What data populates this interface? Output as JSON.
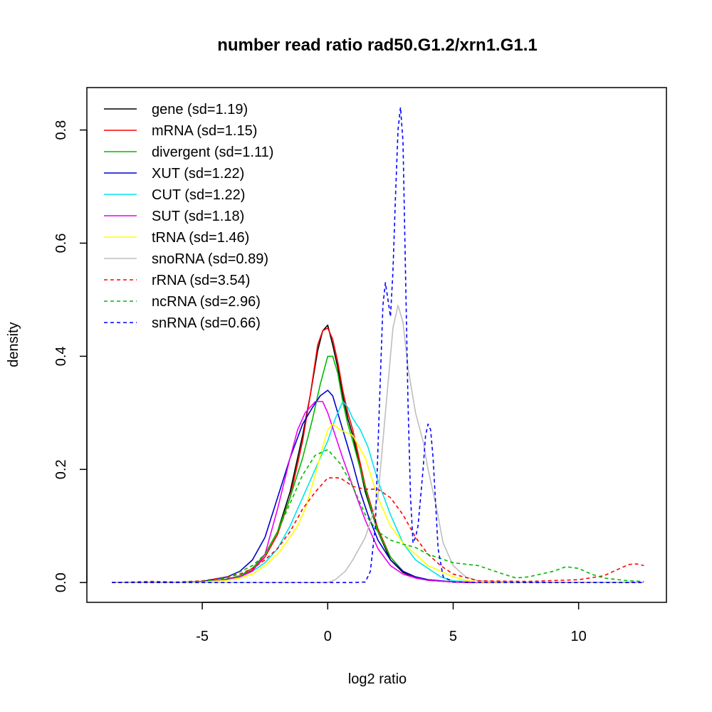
{
  "chart_data": {
    "type": "line",
    "title": "number read ratio rad50.G1.2/xrn1.G1.1",
    "xlabel": "log2 ratio",
    "ylabel": "density",
    "xlim": [
      -9.6,
      13.5
    ],
    "ylim": [
      -0.035,
      0.875
    ],
    "xticks": [
      -5,
      0,
      5,
      10
    ],
    "xtick_labels": [
      "-5",
      "0",
      "5",
      "10"
    ],
    "yticks": [
      0.0,
      0.2,
      0.4,
      0.6,
      0.8
    ],
    "ytick_labels": [
      "0.0",
      "0.2",
      "0.4",
      "0.6",
      "0.8"
    ],
    "legend_position": "top-left",
    "series": [
      {
        "name": "gene",
        "label": "gene (sd=1.19)",
        "color": "#000000",
        "dashed": false,
        "x": [
          -8.6,
          -6,
          -5,
          -4,
          -3.5,
          -3,
          -2.5,
          -2,
          -1.5,
          -1,
          -0.7,
          -0.4,
          -0.2,
          0,
          0.2,
          0.4,
          0.6,
          0.8,
          1,
          1.2,
          1.5,
          2,
          2.5,
          3,
          3.5,
          4,
          5,
          6,
          8,
          10,
          12.6
        ],
        "y": [
          0,
          0,
          0.001,
          0.006,
          0.012,
          0.025,
          0.05,
          0.09,
          0.16,
          0.26,
          0.33,
          0.41,
          0.445,
          0.455,
          0.42,
          0.38,
          0.33,
          0.29,
          0.26,
          0.22,
          0.16,
          0.09,
          0.04,
          0.018,
          0.008,
          0.004,
          0.001,
          0,
          0,
          0,
          0
        ]
      },
      {
        "name": "mRNA",
        "label": "mRNA (sd=1.15)",
        "color": "#ff0000",
        "dashed": false,
        "x": [
          -8.6,
          -6,
          -5,
          -4,
          -3.5,
          -3,
          -2.5,
          -2,
          -1.5,
          -1,
          -0.7,
          -0.4,
          -0.2,
          0,
          0.2,
          0.4,
          0.6,
          0.8,
          1,
          1.2,
          1.5,
          2,
          2.5,
          3,
          3.5,
          4,
          5,
          6,
          8,
          10,
          12.6
        ],
        "y": [
          0,
          0,
          0.001,
          0.005,
          0.01,
          0.022,
          0.045,
          0.085,
          0.15,
          0.25,
          0.33,
          0.42,
          0.445,
          0.45,
          0.43,
          0.39,
          0.34,
          0.3,
          0.27,
          0.23,
          0.17,
          0.095,
          0.045,
          0.02,
          0.009,
          0.004,
          0.001,
          0,
          0,
          0,
          0
        ]
      },
      {
        "name": "divergent",
        "label": "divergent (sd=1.11)",
        "color": "#00bb00",
        "dashed": false,
        "x": [
          -8.6,
          -6,
          -5,
          -4,
          -3.5,
          -3,
          -2.5,
          -2,
          -1.5,
          -1,
          -0.6,
          -0.3,
          0,
          0.2,
          0.4,
          0.6,
          0.8,
          1,
          1.3,
          1.6,
          2,
          2.5,
          3,
          3.5,
          4,
          5,
          6,
          8,
          10,
          12.6
        ],
        "y": [
          0,
          0,
          0.001,
          0.005,
          0.012,
          0.025,
          0.05,
          0.09,
          0.15,
          0.22,
          0.29,
          0.35,
          0.4,
          0.4,
          0.37,
          0.32,
          0.28,
          0.25,
          0.2,
          0.15,
          0.09,
          0.045,
          0.02,
          0.01,
          0.005,
          0.001,
          0,
          0,
          0,
          0
        ]
      },
      {
        "name": "XUT",
        "label": "XUT (sd=1.22)",
        "color": "#0000cc",
        "dashed": false,
        "x": [
          -8.6,
          -6,
          -5,
          -4,
          -3.5,
          -3,
          -2.5,
          -2,
          -1.5,
          -1,
          -0.6,
          -0.3,
          0,
          0.2,
          0.4,
          0.6,
          0.8,
          1,
          1.3,
          1.6,
          2,
          2.5,
          3,
          3.5,
          4,
          5,
          6,
          8,
          10,
          12.6
        ],
        "y": [
          0,
          0,
          0.002,
          0.01,
          0.02,
          0.04,
          0.08,
          0.15,
          0.22,
          0.28,
          0.31,
          0.33,
          0.34,
          0.33,
          0.3,
          0.27,
          0.24,
          0.21,
          0.16,
          0.12,
          0.075,
          0.04,
          0.02,
          0.01,
          0.005,
          0.001,
          0,
          0,
          0,
          0
        ]
      },
      {
        "name": "CUT",
        "label": "CUT (sd=1.22)",
        "color": "#00e5ee",
        "dashed": false,
        "x": [
          -8.6,
          -6,
          -5,
          -4,
          -3.5,
          -3,
          -2.5,
          -2,
          -1.5,
          -1,
          -0.5,
          0,
          0.3,
          0.6,
          0.8,
          1,
          1.3,
          1.6,
          2,
          2.5,
          3,
          3.5,
          4,
          4.5,
          5,
          6,
          8,
          10,
          12.6
        ],
        "y": [
          0,
          0,
          0.001,
          0.005,
          0.01,
          0.02,
          0.035,
          0.06,
          0.1,
          0.15,
          0.2,
          0.25,
          0.29,
          0.32,
          0.31,
          0.29,
          0.27,
          0.24,
          0.18,
          0.12,
          0.07,
          0.04,
          0.025,
          0.01,
          0.003,
          0.001,
          0,
          0,
          0
        ]
      },
      {
        "name": "SUT",
        "label": "SUT (sd=1.18)",
        "color": "#ee00ee",
        "dashed": false,
        "x": [
          -8.6,
          -6,
          -5,
          -4,
          -3.5,
          -3,
          -2.5,
          -2,
          -1.5,
          -1.2,
          -0.9,
          -0.5,
          -0.2,
          0,
          0.3,
          0.6,
          1,
          1.5,
          2,
          2.5,
          3,
          3.5,
          4,
          5,
          6,
          8,
          10,
          12.6
        ],
        "y": [
          0,
          0,
          0.001,
          0.005,
          0.01,
          0.02,
          0.05,
          0.13,
          0.22,
          0.27,
          0.3,
          0.32,
          0.32,
          0.3,
          0.26,
          0.22,
          0.17,
          0.11,
          0.06,
          0.03,
          0.015,
          0.008,
          0.004,
          0.001,
          0,
          0,
          0,
          0
        ]
      },
      {
        "name": "tRNA",
        "label": "tRNA (sd=1.46)",
        "color": "#ffff00",
        "dashed": false,
        "x": [
          -8.6,
          -6,
          -5,
          -4,
          -3.5,
          -3,
          -2.5,
          -2,
          -1.5,
          -1.2,
          -0.9,
          -0.5,
          -0.2,
          0,
          0.2,
          0.5,
          1,
          1.5,
          2,
          2.5,
          3,
          3.5,
          4,
          4.5,
          5,
          5.5,
          6,
          8,
          10,
          12.6
        ],
        "y": [
          0,
          0,
          0.001,
          0.004,
          0.008,
          0.015,
          0.03,
          0.05,
          0.08,
          0.1,
          0.13,
          0.19,
          0.24,
          0.27,
          0.28,
          0.27,
          0.26,
          0.22,
          0.15,
          0.1,
          0.07,
          0.05,
          0.03,
          0.02,
          0.01,
          0.004,
          0.001,
          0,
          0,
          0
        ]
      },
      {
        "name": "snoRNA",
        "label": "snoRNA (sd=0.89)",
        "color": "#bebebe",
        "dashed": false,
        "x": [
          -8.6,
          -6,
          -4,
          -2,
          0,
          0.3,
          0.7,
          1,
          1.5,
          2,
          2.3,
          2.6,
          2.8,
          3,
          3.2,
          3.5,
          3.8,
          4,
          4.3,
          4.6,
          5,
          5.5,
          6,
          8,
          10,
          12.6
        ],
        "y": [
          0,
          0,
          0,
          0,
          0,
          0.005,
          0.02,
          0.04,
          0.08,
          0.15,
          0.3,
          0.45,
          0.49,
          0.46,
          0.38,
          0.3,
          0.25,
          0.2,
          0.14,
          0.07,
          0.03,
          0.01,
          0.003,
          0,
          0,
          0
        ]
      },
      {
        "name": "rRNA",
        "label": "rRNA (sd=3.54)",
        "color": "#ff0000",
        "dashed": true,
        "x": [
          -8.6,
          -7,
          -6,
          -5,
          -4,
          -3.5,
          -3,
          -2.5,
          -2,
          -1.5,
          -1,
          -0.5,
          0,
          0.5,
          1,
          1.5,
          2,
          2.5,
          3,
          3.5,
          4,
          4.5,
          5,
          6,
          8,
          10,
          11,
          11.5,
          12,
          12.3,
          12.6
        ],
        "y": [
          0,
          0.002,
          0.001,
          0.003,
          0.01,
          0.015,
          0.025,
          0.04,
          0.06,
          0.09,
          0.13,
          0.16,
          0.185,
          0.185,
          0.17,
          0.165,
          0.165,
          0.15,
          0.12,
          0.08,
          0.05,
          0.03,
          0.015,
          0.003,
          0.002,
          0.005,
          0.012,
          0.022,
          0.032,
          0.033,
          0.03
        ]
      },
      {
        "name": "ncRNA",
        "label": "ncRNA (sd=2.96)",
        "color": "#00bb00",
        "dashed": true,
        "x": [
          -8.6,
          -6,
          -5,
          -4,
          -3,
          -2.5,
          -2,
          -1.5,
          -1,
          -0.5,
          0,
          0.5,
          1,
          1.5,
          2,
          2.5,
          3,
          3.5,
          4,
          5,
          6,
          7,
          7.5,
          8,
          9,
          9.5,
          10,
          10.5,
          11,
          12,
          12.6
        ],
        "y": [
          0,
          0,
          0.002,
          0.008,
          0.03,
          0.05,
          0.09,
          0.14,
          0.19,
          0.225,
          0.235,
          0.21,
          0.17,
          0.12,
          0.09,
          0.075,
          0.068,
          0.062,
          0.05,
          0.035,
          0.03,
          0.015,
          0.008,
          0.01,
          0.02,
          0.028,
          0.025,
          0.015,
          0.008,
          0.003,
          0.002
        ]
      },
      {
        "name": "snRNA",
        "label": "snRNA (sd=0.66)",
        "color": "#0000ff",
        "dashed": true,
        "x": [
          -8.6,
          -6,
          -4,
          -2,
          0,
          1,
          1.5,
          1.7,
          1.9,
          2.05,
          2.2,
          2.3,
          2.4,
          2.5,
          2.6,
          2.7,
          2.8,
          2.9,
          3.0,
          3.1,
          3.2,
          3.3,
          3.4,
          3.5,
          3.6,
          3.7,
          3.8,
          3.9,
          4.0,
          4.1,
          4.2,
          4.3,
          4.4,
          4.6,
          5,
          6,
          8,
          10,
          12.6
        ],
        "y": [
          0,
          0,
          0,
          0,
          0,
          0,
          0.001,
          0.02,
          0.1,
          0.3,
          0.49,
          0.53,
          0.5,
          0.47,
          0.55,
          0.68,
          0.8,
          0.84,
          0.78,
          0.55,
          0.32,
          0.15,
          0.07,
          0.08,
          0.1,
          0.15,
          0.2,
          0.26,
          0.28,
          0.27,
          0.22,
          0.14,
          0.06,
          0.01,
          0.001,
          0,
          0,
          0,
          0
        ]
      }
    ]
  }
}
